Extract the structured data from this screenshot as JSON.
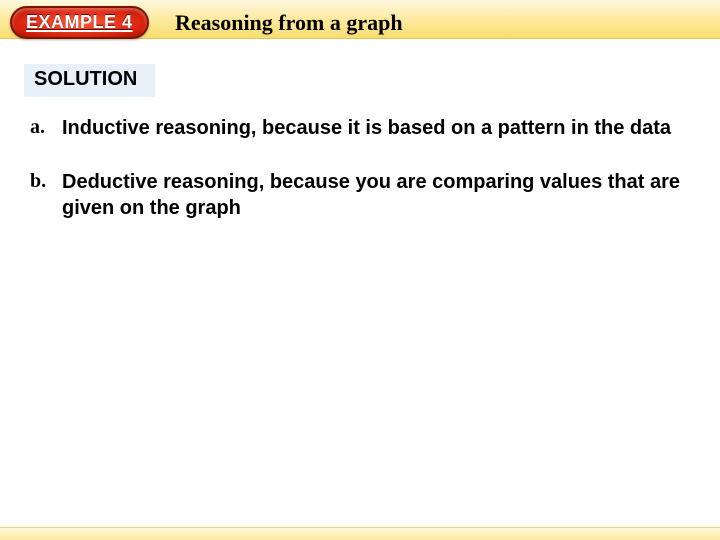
{
  "badge": {
    "label": "EXAMPLE 4"
  },
  "heading": {
    "text": "Reasoning from a graph"
  },
  "solution": {
    "label": "SOLUTION"
  },
  "items": {
    "a": {
      "letter": "a.",
      "text": "Inductive reasoning, because it is based on a pattern in the data"
    },
    "b": {
      "letter": "b.",
      "text": "Deductive reasoning, because you are comparing values that are given on the graph"
    }
  },
  "colors": {
    "badge_bg_center": "#ff5a3a",
    "badge_bg_edge": "#9e0e00",
    "stripe_light": "#fff8e0",
    "stripe_dark": "#f8dd70",
    "solution_bg": "#e8f0fa"
  }
}
